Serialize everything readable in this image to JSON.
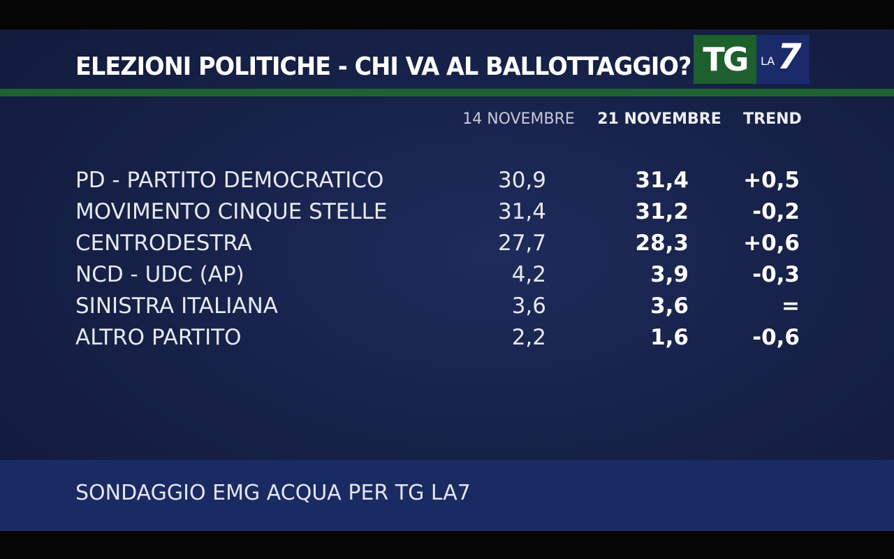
{
  "title": "ELEZIONI POLITICHE - CHI VA AL BALLOTTAGGIO?",
  "logo": {
    "tg": "TG",
    "la": "LA",
    "seven": "7"
  },
  "headers": {
    "date1": "14 NOVEMBRE",
    "date2": "21 NOVEMBRE",
    "trend": "TREND"
  },
  "rows": [
    {
      "name": "PD - PARTITO DEMOCRATICO",
      "v1": "30,9",
      "v2": "31,4",
      "trend": "+0,5"
    },
    {
      "name": "MOVIMENTO CINQUE STELLE",
      "v1": "31,4",
      "v2": "31,2",
      "trend": "-0,2"
    },
    {
      "name": "CENTRODESTRA",
      "v1": "27,7",
      "v2": "28,3",
      "trend": "+0,6"
    },
    {
      "name": "NCD - UDC (AP)",
      "v1": "4,2",
      "v2": "3,9",
      "trend": "-0,3"
    },
    {
      "name": "SINISTRA ITALIANA",
      "v1": "3,6",
      "v2": "3,6",
      "trend": "="
    },
    {
      "name": "ALTRO PARTITO",
      "v1": "2,2",
      "v2": "1,6",
      "trend": "-0,6"
    }
  ],
  "footer": "SONDAGGIO EMG ACQUA PER TG LA7",
  "colors": {
    "background": "#17224a",
    "accent_green": "#1e6231",
    "logo_blue": "#1b2a6b",
    "footer_band": "#1a2a63"
  }
}
